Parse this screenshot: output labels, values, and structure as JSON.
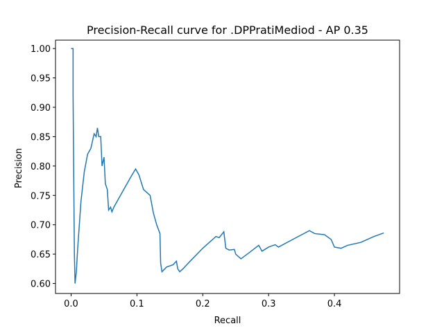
{
  "chart_data": {
    "type": "line",
    "title": "Precision-Recall curve for .DPPratiMediod - AP 0.35",
    "x_label": "Recall",
    "y_label": "Precision",
    "color": "#1f77b4",
    "x": [
      0.0,
      0.003,
      0.003,
      0.004,
      0.005,
      0.006,
      0.008,
      0.01,
      0.015,
      0.02,
      0.025,
      0.03,
      0.035,
      0.038,
      0.04,
      0.042,
      0.045,
      0.047,
      0.05,
      0.052,
      0.055,
      0.057,
      0.06,
      0.062,
      0.065,
      0.07,
      0.08,
      0.09,
      0.098,
      0.103,
      0.11,
      0.12,
      0.125,
      0.13,
      0.135,
      0.136,
      0.138,
      0.145,
      0.155,
      0.16,
      0.162,
      0.165,
      0.17,
      0.18,
      0.2,
      0.22,
      0.225,
      0.232,
      0.235,
      0.24,
      0.248,
      0.25,
      0.258,
      0.27,
      0.285,
      0.29,
      0.3,
      0.31,
      0.315,
      0.34,
      0.362,
      0.37,
      0.385,
      0.395,
      0.4,
      0.41,
      0.42,
      0.44,
      0.46,
      0.475
    ],
    "values": [
      1.0,
      1.0,
      0.92,
      0.78,
      0.65,
      0.6,
      0.62,
      0.66,
      0.74,
      0.79,
      0.82,
      0.83,
      0.855,
      0.85,
      0.865,
      0.85,
      0.85,
      0.8,
      0.815,
      0.77,
      0.76,
      0.725,
      0.73,
      0.722,
      0.73,
      0.74,
      0.76,
      0.78,
      0.795,
      0.785,
      0.76,
      0.75,
      0.72,
      0.7,
      0.685,
      0.635,
      0.62,
      0.628,
      0.632,
      0.638,
      0.625,
      0.62,
      0.625,
      0.637,
      0.66,
      0.68,
      0.678,
      0.688,
      0.66,
      0.657,
      0.658,
      0.65,
      0.642,
      0.652,
      0.665,
      0.655,
      0.662,
      0.666,
      0.662,
      0.677,
      0.69,
      0.685,
      0.683,
      0.675,
      0.662,
      0.66,
      0.665,
      0.67,
      0.68,
      0.686
    ],
    "xlim": [
      -0.0237,
      0.499
    ],
    "ylim": [
      0.583,
      1.0143
    ],
    "xticks": [
      {
        "value": 0,
        "label": "0.0"
      },
      {
        "value": 0.1,
        "label": "0.1"
      },
      {
        "value": 0.2,
        "label": "0.2"
      },
      {
        "value": 0.3,
        "label": "0.3"
      },
      {
        "value": 0.4,
        "label": "0.4"
      }
    ],
    "yticks": [
      {
        "value": 0.6,
        "label": "0.60"
      },
      {
        "value": 0.65,
        "label": "0.65"
      },
      {
        "value": 0.7,
        "label": "0.70"
      },
      {
        "value": 0.75,
        "label": "0.75"
      },
      {
        "value": 0.8,
        "label": "0.80"
      },
      {
        "value": 0.85,
        "label": "0.85"
      },
      {
        "value": 0.9,
        "label": "0.90"
      },
      {
        "value": 0.95,
        "label": "0.95"
      },
      {
        "value": 1.0,
        "label": "1.00"
      }
    ]
  }
}
